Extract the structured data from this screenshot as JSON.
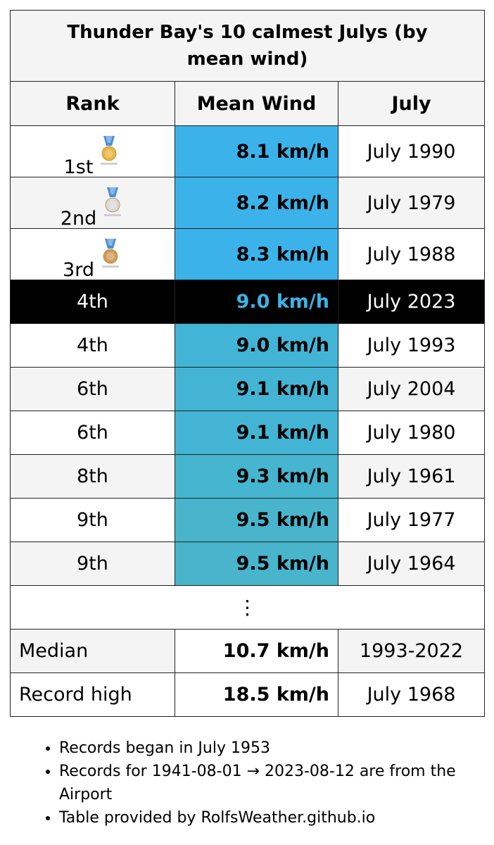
{
  "title": "Thunder Bay's 10 calmest Julys (by mean wind)",
  "headers": {
    "rank": "Rank",
    "wind": "Mean Wind",
    "month": "July"
  },
  "rows": [
    {
      "rank": "1st",
      "medal": "gold-medal-icon",
      "wind": "8.1 km/h",
      "month": "July 1990",
      "color": "#3bb3ea"
    },
    {
      "rank": "2nd",
      "medal": "silver-medal-icon",
      "wind": "8.2 km/h",
      "month": "July 1979",
      "color": "#3bb3ea"
    },
    {
      "rank": "3rd",
      "medal": "bronze-medal-icon",
      "wind": "8.3 km/h",
      "month": "July 1988",
      "color": "#3bb3ea"
    },
    {
      "rank": "4th",
      "wind": "9.0 km/h",
      "month": "July 2023",
      "color": "#42b4d6",
      "current": true
    },
    {
      "rank": "4th",
      "wind": "9.0 km/h",
      "month": "July 1993",
      "color": "#42b4d6"
    },
    {
      "rank": "6th",
      "wind": "9.1 km/h",
      "month": "July 2004",
      "color": "#43b4d3"
    },
    {
      "rank": "6th",
      "wind": "9.1 km/h",
      "month": "July 1980",
      "color": "#43b4d3"
    },
    {
      "rank": "8th",
      "wind": "9.3 km/h",
      "month": "July 1961",
      "color": "#46b5cf"
    },
    {
      "rank": "9th",
      "wind": "9.5 km/h",
      "month": "July 1977",
      "color": "#48b5cc"
    },
    {
      "rank": "9th",
      "wind": "9.5 km/h",
      "month": "July 1964",
      "color": "#48b5cc"
    }
  ],
  "ellipsis": "⋮",
  "summary": [
    {
      "label": "Median",
      "wind": "10.7 km/h",
      "month": "1993-2022"
    },
    {
      "label": "Record high",
      "wind": "18.5 km/h",
      "month": "July 1968"
    }
  ],
  "notes": [
    "Records began in July 1953",
    "Records for 1941-08-01 → 2023-08-12 are from the Airport",
    "Table provided by RolfsWeather.github.io"
  ],
  "colors": {
    "current_row_bg": "#000000",
    "current_wind_text": "#3bb3e6",
    "gold": "#e8b53a",
    "silver": "#d8d8d8",
    "bronze": "#d29a55",
    "ribbon": "#4a8fd6"
  }
}
